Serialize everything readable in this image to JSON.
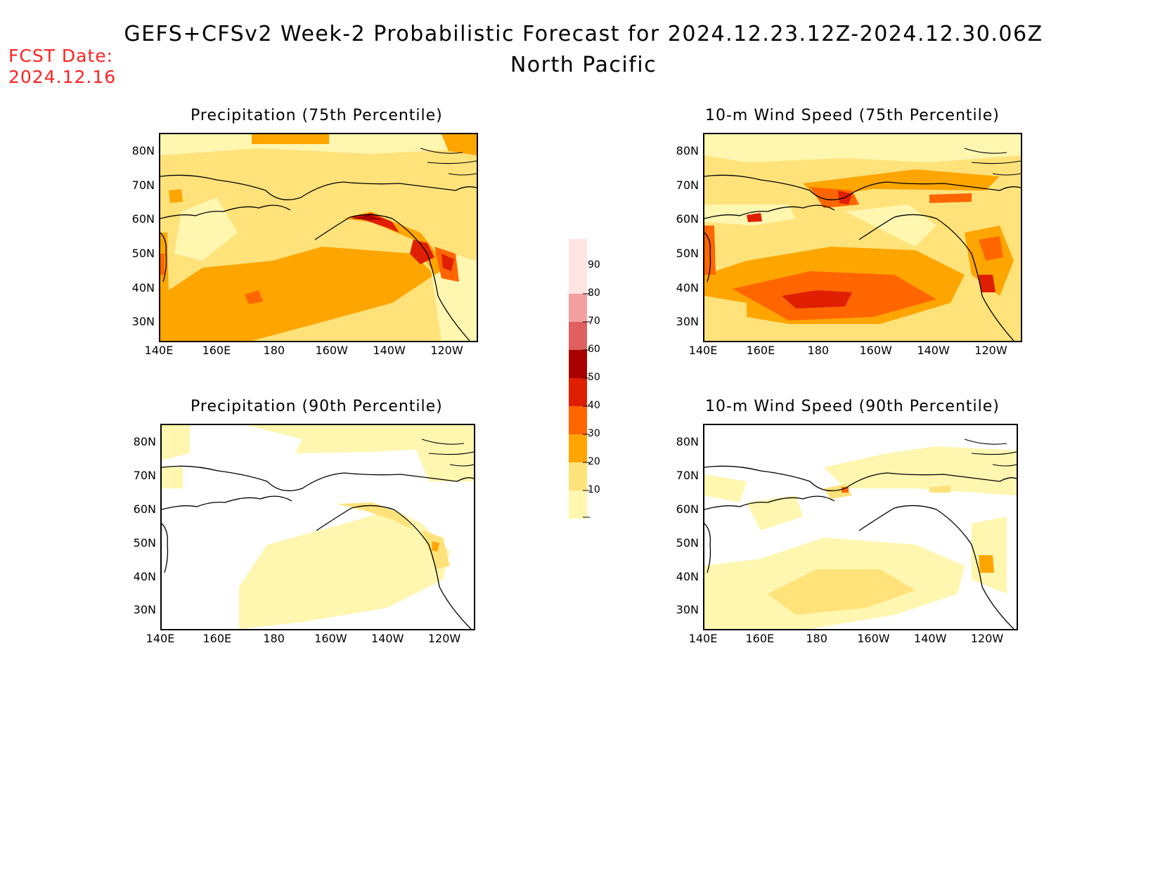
{
  "title": "GEFS+CFSv2 Week-2 Probabilistic Forecast for 2024.12.23.12Z-2024.12.30.06Z",
  "subtitle": "North Pacific",
  "fcst_label": "FCST Date:",
  "fcst_date": "2024.12.16",
  "lat_ticks": [
    "80N",
    "70N",
    "60N",
    "50N",
    "40N",
    "30N"
  ],
  "lon_ticks": [
    "140E",
    "160E",
    "180",
    "160W",
    "140W",
    "120W"
  ],
  "panels": [
    {
      "id": "precip75",
      "title": "Precipitation (75th Percentile)"
    },
    {
      "id": "wind75",
      "title": "10-m Wind Speed (75th Percentile)"
    },
    {
      "id": "precip90",
      "title": "Precipitation (90th Percentile)"
    },
    {
      "id": "wind90",
      "title": "10-m Wind Speed (90th Percentile)"
    }
  ],
  "colorbar": {
    "labels": [
      "90",
      "80",
      "70",
      "60",
      "50",
      "40",
      "30",
      "20",
      "10"
    ],
    "colors": {
      "10-20": "#fff6b0",
      "20-30": "#ffe27a",
      "30-40": "#ffa500",
      "40-50": "#ff6600",
      "50-60": "#e01e00",
      "60-70": "#a80000",
      "70-80": "#e06060",
      "80-90": "#f4a0a0",
      "90-100": "#ffe4e4"
    }
  }
}
